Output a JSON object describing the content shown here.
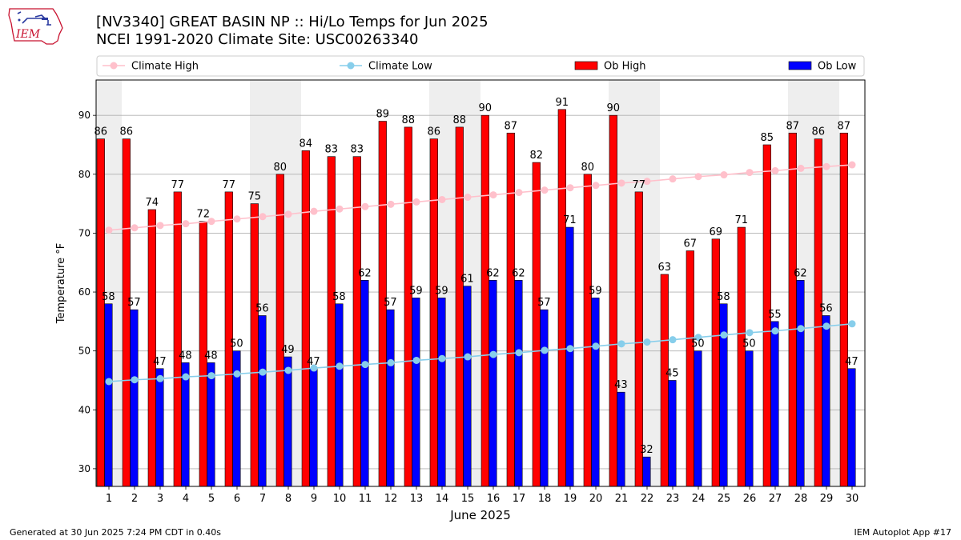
{
  "header": {
    "title_line1": "[NV3340] GREAT BASIN NP :: Hi/Lo Temps for Jun 2025",
    "title_line2": "NCEI 1991-2020 Climate Site: USC00263340",
    "logo_text": "IEM"
  },
  "footer": {
    "left": "Generated at 30 Jun 2025 7:24 PM CDT in 0.40s",
    "right": "IEM Autoplot App #17"
  },
  "colors": {
    "ob_high": "#ff0000",
    "ob_low": "#0000ff",
    "climate_high": "#ffc0cb",
    "climate_low": "#87ceeb",
    "weekend_band": "#eeeeee",
    "grid": "#b0b0b0"
  },
  "chart_data": {
    "type": "bar",
    "xlabel": "June 2025",
    "ylabel": "Temperature °F",
    "ylim": [
      27,
      96
    ],
    "yticks": [
      30,
      40,
      50,
      60,
      70,
      80,
      90
    ],
    "grid": "horizontal",
    "legend_placement": "top (above plot, single row)",
    "categories": [
      "1",
      "2",
      "3",
      "4",
      "5",
      "6",
      "7",
      "8",
      "9",
      "10",
      "11",
      "12",
      "13",
      "14",
      "15",
      "16",
      "17",
      "18",
      "19",
      "20",
      "21",
      "22",
      "23",
      "24",
      "25",
      "26",
      "27",
      "28",
      "29",
      "30"
    ],
    "weekend_days": [
      1,
      7,
      8,
      14,
      15,
      21,
      22,
      28,
      29
    ],
    "series": [
      {
        "name": "Climate High",
        "kind": "line",
        "values": [
          70.5,
          70.9,
          71.3,
          71.6,
          72.0,
          72.4,
          72.8,
          73.2,
          73.7,
          74.1,
          74.5,
          74.9,
          75.3,
          75.7,
          76.1,
          76.5,
          76.9,
          77.3,
          77.7,
          78.1,
          78.5,
          78.8,
          79.2,
          79.6,
          79.9,
          80.3,
          80.6,
          81.0,
          81.3,
          81.6
        ]
      },
      {
        "name": "Climate Low",
        "kind": "line",
        "values": [
          44.8,
          45.1,
          45.3,
          45.6,
          45.8,
          46.1,
          46.4,
          46.7,
          47.1,
          47.4,
          47.7,
          48.0,
          48.4,
          48.7,
          49.0,
          49.4,
          49.7,
          50.1,
          50.4,
          50.8,
          51.2,
          51.5,
          51.9,
          52.3,
          52.7,
          53.1,
          53.4,
          53.8,
          54.2,
          54.6
        ]
      },
      {
        "name": "Ob High",
        "kind": "bar",
        "values": [
          86,
          86,
          74,
          77,
          72,
          77,
          75,
          80,
          84,
          83,
          83,
          89,
          88,
          86,
          88,
          90,
          87,
          82,
          91,
          80,
          90,
          77,
          63,
          67,
          69,
          71,
          85,
          87,
          86,
          87
        ]
      },
      {
        "name": "Ob Low",
        "kind": "bar",
        "values": [
          58,
          57,
          47,
          48,
          48,
          50,
          56,
          49,
          47,
          58,
          62,
          57,
          59,
          59,
          61,
          62,
          62,
          57,
          71,
          59,
          43,
          32,
          45,
          50,
          58,
          50,
          55,
          62,
          56,
          47
        ]
      }
    ]
  }
}
